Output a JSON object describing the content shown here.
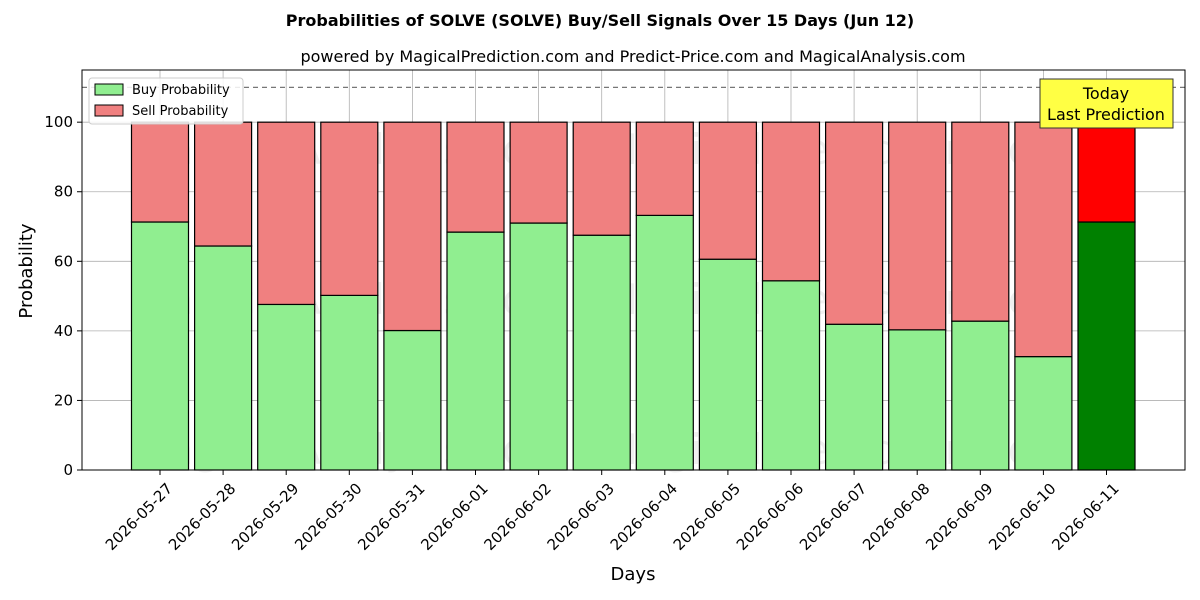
{
  "chart_data": {
    "type": "bar",
    "stacked": true,
    "title": "Probabilities of SOLVE (SOLVE) Buy/Sell Signals Over 15 Days (Jun 12)",
    "subtitle": "powered by MagicalPrediction.com and Predict-Price.com and MagicalAnalysis.com",
    "xlabel": "Days",
    "ylabel": "Probability",
    "ylim": [
      0,
      115
    ],
    "yticks": [
      0,
      20,
      40,
      60,
      80,
      100
    ],
    "categories": [
      "2026-05-27",
      "2026-05-28",
      "2026-05-29",
      "2026-05-30",
      "2026-05-31",
      "2026-06-01",
      "2026-06-02",
      "2026-06-03",
      "2026-06-04",
      "2026-06-05",
      "2026-06-06",
      "2026-06-07",
      "2026-06-08",
      "2026-06-09",
      "2026-06-10",
      "2026-06-11"
    ],
    "series": [
      {
        "name": "Buy Probability",
        "color": "#90ee90",
        "values": [
          71.3,
          64.4,
          47.6,
          50.2,
          40.1,
          68.4,
          71.0,
          67.5,
          73.2,
          60.6,
          54.4,
          41.9,
          40.3,
          42.8,
          32.6,
          71.3
        ]
      },
      {
        "name": "Sell Probability",
        "color": "#f08080",
        "values": [
          28.7,
          35.6,
          52.4,
          49.8,
          59.9,
          31.6,
          29.0,
          32.5,
          26.8,
          39.4,
          45.6,
          58.1,
          59.7,
          57.2,
          67.4,
          28.7
        ]
      }
    ],
    "highlight_last": {
      "buy_color": "#008000",
      "sell_color": "#ff0000"
    },
    "reference_line": 110,
    "annotation": [
      "Today",
      "Last Prediction"
    ],
    "annotation_color": "#ffff44",
    "watermarks": [
      "MagicalAnalysis.com",
      "MagicalPrediction.com"
    ],
    "grid": true,
    "legend_position": "top-left"
  }
}
